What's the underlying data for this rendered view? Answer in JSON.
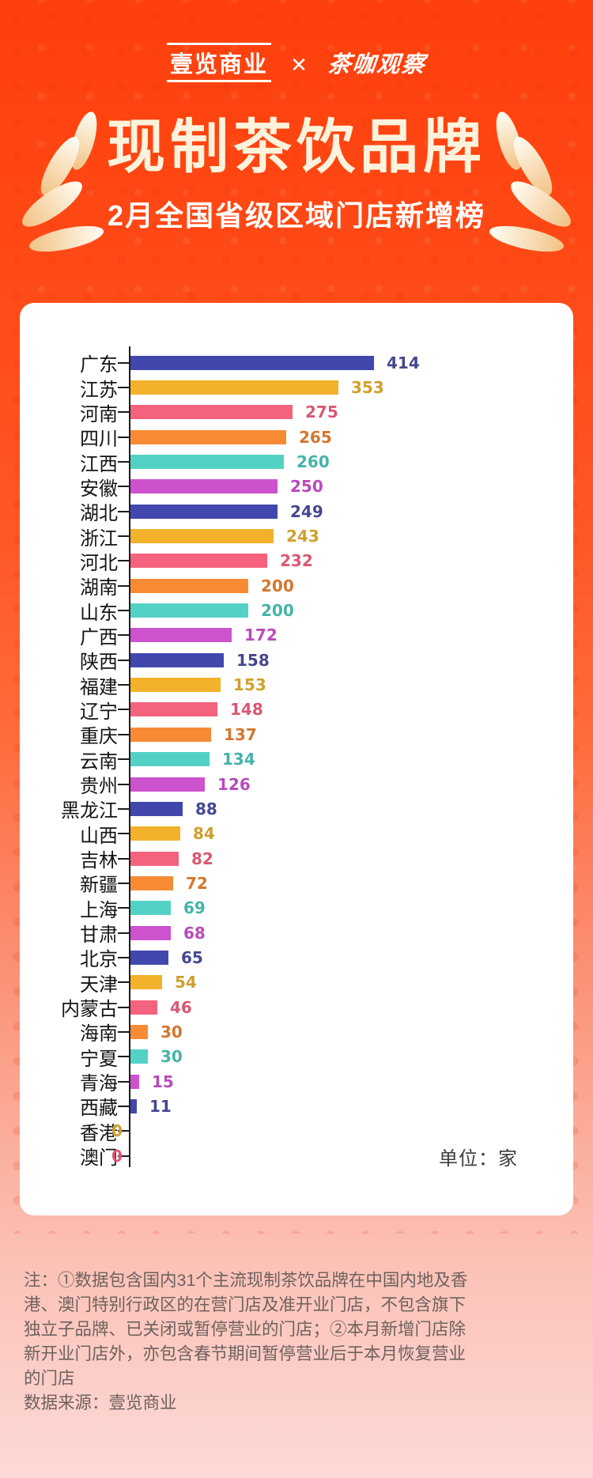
{
  "header": {
    "logo_left": "壹览商业",
    "logo_separator": "✕",
    "logo_right": "茶咖观察",
    "title": "现制茶饮品牌",
    "subtitle": "2月全国省级区域门店新增榜"
  },
  "chart_data": {
    "type": "bar",
    "orientation": "horizontal",
    "title": "现制茶饮品牌 2月全国省级区域门店新增榜",
    "unit_label": "单位：家",
    "unit": "家",
    "xlim": [
      0,
      450
    ],
    "categories": [
      "广东",
      "江苏",
      "河南",
      "四川",
      "江西",
      "安徽",
      "湖北",
      "浙江",
      "河北",
      "湖南",
      "山东",
      "广西",
      "陕西",
      "福建",
      "辽宁",
      "重庆",
      "云南",
      "贵州",
      "黑龙江",
      "山西",
      "吉林",
      "新疆",
      "上海",
      "甘肃",
      "北京",
      "天津",
      "内蒙古",
      "海南",
      "宁夏",
      "青海",
      "西藏",
      "香港",
      "澳门"
    ],
    "values": [
      414,
      353,
      275,
      265,
      260,
      250,
      249,
      243,
      232,
      200,
      200,
      172,
      158,
      153,
      148,
      137,
      134,
      126,
      88,
      84,
      82,
      72,
      69,
      68,
      65,
      54,
      46,
      30,
      30,
      15,
      11,
      0,
      0
    ],
    "bar_colors": [
      "#4247ae",
      "#f2b22c",
      "#f4627e",
      "#f78b35",
      "#54d1c5",
      "#cc53cd"
    ],
    "value_colors": [
      "#44488f",
      "#cfa02e",
      "#d95872",
      "#d4762e",
      "#45b3a9",
      "#b94aba"
    ],
    "axis_color": "#1c1c1c",
    "legend": "none",
    "grid": "off"
  },
  "footer": {
    "note_lines": [
      "注：①数据包含国内31个主流现制茶饮品牌在中国内地及香",
      "港、澳门特别行政区的在营门店及准开业门店，不包含旗下",
      "独立子品牌、已关闭或暂停营业的门店；②本月新增门店除",
      "新开业门店外，亦包含春节期间暂停营业后于本月恢复营业",
      "的门店"
    ],
    "source": "数据来源：壹览商业"
  },
  "colors": {
    "background_top": "#ff4612",
    "background_bottom": "#fdd9d6",
    "card_background": "#ffffff",
    "title_color": "#fdf3dc",
    "subtitle_color": "#ffffff",
    "footer_text": "#6e615e",
    "laurel_light": "#fffdf4",
    "laurel_gold": "#f2c285"
  }
}
